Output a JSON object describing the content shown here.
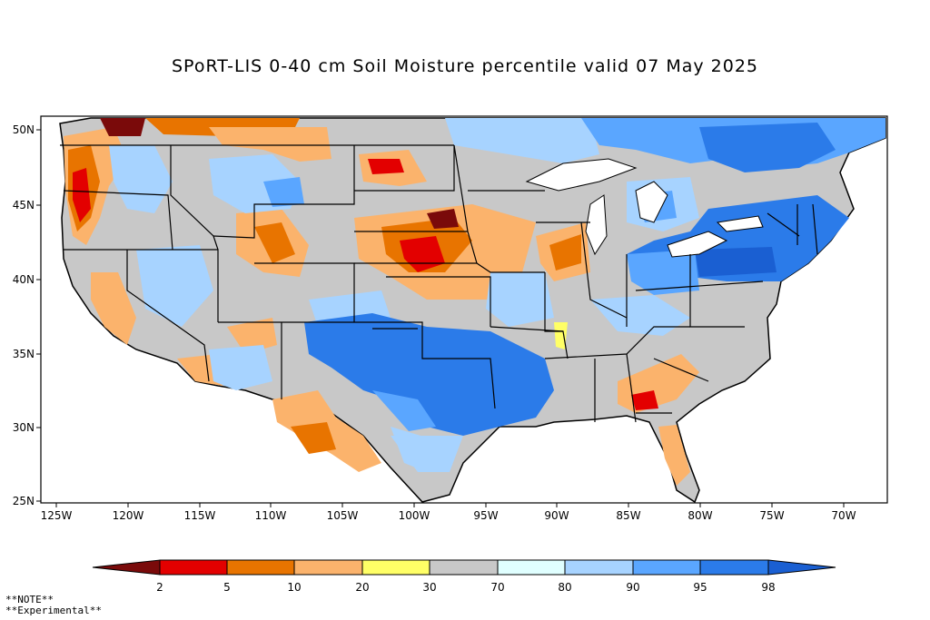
{
  "title": "SPoRT-LIS 0-40 cm Soil Moisture percentile valid 07 May 2025",
  "lat_labels": [
    "50N",
    "45N",
    "40N",
    "35N",
    "30N",
    "25N"
  ],
  "lon_labels": [
    "125W",
    "120W",
    "115W",
    "110W",
    "105W",
    "100W",
    "95W",
    "90W",
    "85W",
    "80W",
    "75W",
    "70W"
  ],
  "colorbar": {
    "thresholds": [
      "2",
      "5",
      "10",
      "20",
      "30",
      "70",
      "80",
      "90",
      "95",
      "98"
    ],
    "colors": [
      "#7a0a0a",
      "#e30000",
      "#e87400",
      "#fbb36c",
      "#ffff66",
      "#c8c8c8",
      "#e0ffff",
      "#a7d3ff",
      "#5aa6ff",
      "#2b7be9",
      "#1a5fd2"
    ]
  },
  "notes": [
    "**NOTE**",
    "**Experimental**"
  ]
}
